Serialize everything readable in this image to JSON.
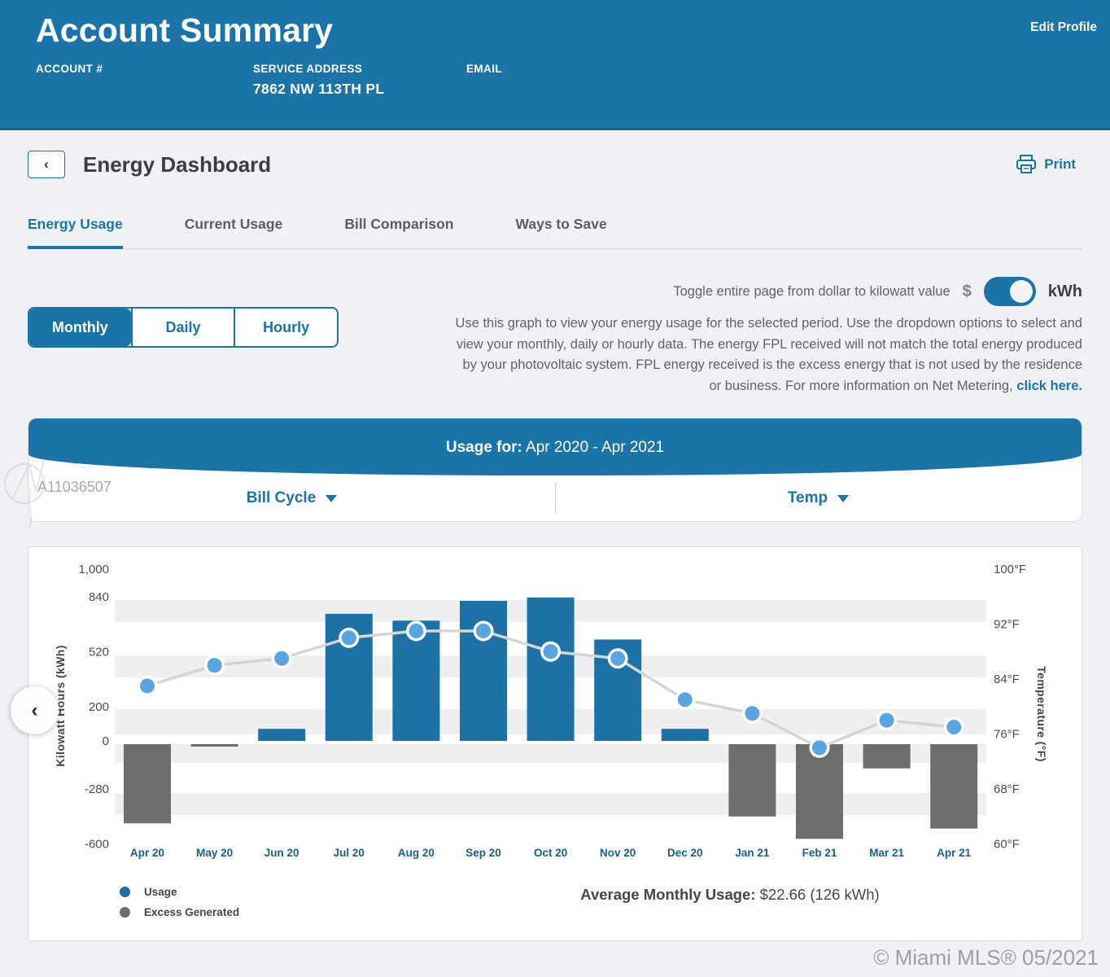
{
  "header": {
    "title": "Account Summary",
    "account_label": "ACCOUNT #",
    "service_label": "SERVICE ADDRESS",
    "service_value": "7862 NW 113TH PL",
    "email_label": "EMAIL",
    "edit_profile": "Edit Profile"
  },
  "toolbar": {
    "title": "Energy Dashboard",
    "print_label": "Print"
  },
  "icons": {
    "back_chevron": "‹",
    "chart_prev_chevron": "‹"
  },
  "tabs": [
    {
      "label": "Energy Usage",
      "active": true
    },
    {
      "label": "Current Usage",
      "active": false
    },
    {
      "label": "Bill Comparison",
      "active": false
    },
    {
      "label": "Ways to Save",
      "active": false
    }
  ],
  "period_buttons": {
    "monthly": "Monthly",
    "daily": "Daily",
    "hourly": "Hourly",
    "selected": "Monthly"
  },
  "toggle": {
    "text": "Toggle entire page from dollar to kilowatt value",
    "left_label": "$",
    "right_label": "kWh",
    "state": "kWh"
  },
  "description": {
    "body": "Use this graph to view your energy usage for the selected period. Use the dropdown options to select and view your monthly, daily or hourly data. The energy FPL received will not match the total energy produced by your photovoltaic system. FPL energy received is the excess energy that is not used by the residence or business. For more information on Net Metering, ",
    "link": "click here."
  },
  "usage_banner": {
    "label": "Usage for:",
    "range": " Apr 2020 - Apr 2021"
  },
  "dropdowns": {
    "bill_cycle": "Bill Cycle",
    "temp": "Temp"
  },
  "summary": {
    "label": "Average Monthly Usage:",
    "value": " $22.66 (126 kWh)"
  },
  "watermarks": {
    "listing_id": "A11036507",
    "footer": "© Miami MLS® 05/2021"
  },
  "chart_data": {
    "type": "bar",
    "categories": [
      "Apr 20",
      "May 20",
      "Jun 20",
      "Jul 20",
      "Aug 20",
      "Sep 20",
      "Oct 20",
      "Nov 20",
      "Dec 20",
      "Jan 21",
      "Feb 21",
      "Mar 21",
      "Apr 21"
    ],
    "series": [
      {
        "name": "Usage",
        "type": "bar",
        "unit": "kWh",
        "axis": "left",
        "values": [
          -480,
          -20,
          70,
          740,
          700,
          815,
          835,
          590,
          70,
          -440,
          -570,
          -160,
          -510
        ]
      },
      {
        "name": "Temperature",
        "type": "line",
        "unit": "°F",
        "axis": "right",
        "values": [
          83,
          86,
          87,
          90,
          91,
          91,
          88,
          87,
          81,
          79,
          74,
          78,
          77
        ]
      }
    ],
    "ylabel_left": "Kilowatt Hours (kWh)",
    "ylabel_right": "Temperature (°F)",
    "left_ticks": {
      "values": [
        1000,
        840,
        520,
        200,
        0,
        -280,
        -600
      ],
      "labels": [
        "1,000",
        "840",
        "520",
        "200",
        "0",
        "-280",
        "-600"
      ]
    },
    "right_ticks": {
      "values": [
        100,
        92,
        84,
        76,
        68,
        60
      ],
      "labels": [
        "100°F",
        "92°F",
        "84°F",
        "76°F",
        "68°F",
        "60°F"
      ]
    },
    "left_range": [
      -600,
      1000
    ],
    "right_range": [
      60,
      100
    ],
    "legend": [
      {
        "label": "Usage",
        "color": "#1c72a6"
      },
      {
        "label": "Excess Generated",
        "color": "#6d6d6d"
      }
    ],
    "legend_position": "bottom-left",
    "grid": "horizontal-zebra-stripes",
    "colors": {
      "bar_positive": "#1c72a6",
      "bar_negative": "#6d6d6d",
      "line": "#dad4ce",
      "marker": "#58a6e1",
      "stripe": "#efefef"
    }
  }
}
